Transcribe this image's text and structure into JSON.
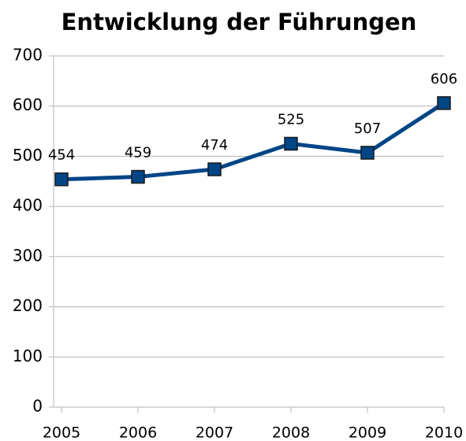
{
  "chart_data": {
    "type": "line",
    "title": "Entwicklung der Führungen",
    "categories": [
      "2005",
      "2006",
      "2007",
      "2008",
      "2009",
      "2010"
    ],
    "series": [
      {
        "name": "Führungen",
        "color": "#004586",
        "values": [
          454,
          459,
          474,
          525,
          507,
          606
        ]
      }
    ],
    "ylim": [
      0,
      700
    ],
    "yticks": [
      0,
      100,
      200,
      300,
      400,
      500,
      600,
      700
    ],
    "grid": true
  }
}
